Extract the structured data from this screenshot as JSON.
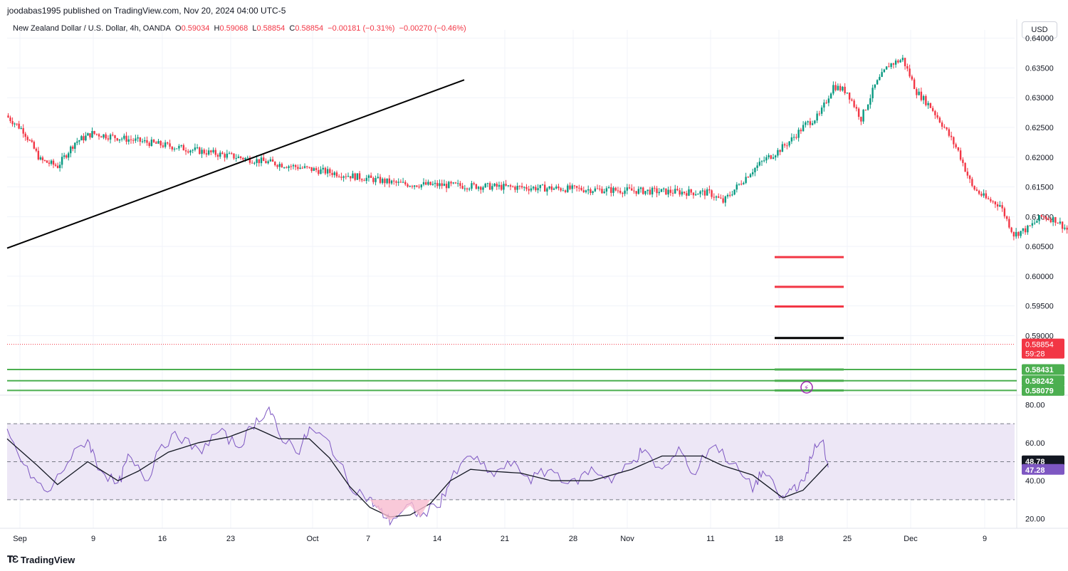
{
  "header": {
    "published": "joodabas1995 published on TradingView.com, Nov 20, 2024 04:00 UTC-5"
  },
  "legend": {
    "symbol": "New Zealand Dollar / U.S. Dollar, 4h, OANDA",
    "o_label": "O",
    "o": "0.59034",
    "h_label": "H",
    "h": "0.59068",
    "l_label": "L",
    "l": "0.58854",
    "c_label": "C",
    "c": "0.58854",
    "change": "−0.00181 (−0.31%)",
    "change2": "−0.00270 (−0.46%)"
  },
  "currency_button": "USD",
  "footer": {
    "brand": "TradingView"
  },
  "colors": {
    "up": "#089981",
    "down": "#f23645",
    "rsi": "#7e57c2",
    "rsi_ma": "#131722",
    "rsi_band": "#ede7f6",
    "support": "#4caf50",
    "resistance": "#f23645",
    "trendline": "#000000"
  },
  "chart_data": [
    {
      "type": "candlestick",
      "title": "New Zealand Dollar / U.S. Dollar, 4h, OANDA",
      "x_ticks": [
        "Sep",
        "9",
        "16",
        "23",
        "Oct",
        "7",
        "14",
        "21",
        "28",
        "Nov",
        "11",
        "18",
        "25",
        "Dec",
        "9"
      ],
      "y_ticks": [
        "0.64000",
        "0.63500",
        "0.63000",
        "0.62500",
        "0.62000",
        "0.61500",
        "0.61000",
        "0.60500",
        "0.60000",
        "0.59500",
        "0.59000"
      ],
      "ylim": [
        0.58,
        0.6402
      ],
      "close_path_anchors": [
        [
          "Sep",
          0.627
        ],
        [
          "3",
          0.6245
        ],
        [
          "5",
          0.6195
        ],
        [
          "6",
          0.6185
        ],
        [
          "8",
          0.6225
        ],
        [
          "9",
          0.624
        ],
        [
          "10",
          0.6155
        ],
        [
          "11",
          0.614
        ],
        [
          "12",
          0.6125
        ],
        [
          "13",
          0.615
        ],
        [
          "16",
          0.6175
        ],
        [
          "17",
          0.6195
        ],
        [
          "18",
          0.621
        ],
        [
          "19",
          0.623
        ],
        [
          "20",
          0.6255
        ],
        [
          "23",
          0.627
        ],
        [
          "24",
          0.632
        ],
        [
          "25",
          0.631
        ],
        [
          "26",
          0.6265
        ],
        [
          "27",
          0.632
        ],
        [
          "29",
          0.6355
        ],
        [
          "30",
          0.6365
        ],
        [
          "Oct",
          0.631
        ],
        [
          "2",
          0.6285
        ],
        [
          "3",
          0.625
        ],
        [
          "4",
          0.621
        ],
        [
          "7",
          0.615
        ],
        [
          "8",
          0.613
        ],
        [
          "9",
          0.612
        ],
        [
          "10",
          0.607
        ],
        [
          "11",
          0.608
        ],
        [
          "14",
          0.61
        ],
        [
          "15",
          0.6095
        ],
        [
          "16",
          0.6075
        ],
        [
          "17",
          0.606
        ],
        [
          "18",
          0.607
        ],
        [
          "21",
          0.6055
        ],
        [
          "22",
          0.6025
        ],
        [
          "23",
          0.602
        ],
        [
          "24",
          0.6005
        ],
        [
          "25",
          0.6
        ],
        [
          "28",
          0.5985
        ],
        [
          "29",
          0.598
        ],
        [
          "30",
          0.597
        ],
        [
          "31",
          0.5975
        ],
        [
          "Nov",
          0.598
        ],
        [
          "4",
          0.5995
        ],
        [
          "5",
          0.6005
        ],
        [
          "6",
          0.5935
        ],
        [
          "7",
          0.599
        ],
        [
          "8",
          0.6025
        ],
        [
          "11",
          0.5975
        ],
        [
          "12",
          0.596
        ],
        [
          "13",
          0.5925
        ],
        [
          "14",
          0.588
        ],
        [
          "15",
          0.5865
        ],
        [
          "18",
          0.587
        ],
        [
          "19",
          0.5895
        ],
        [
          "20",
          0.5885
        ]
      ],
      "last_price": "0.58854",
      "countdown": "59:28",
      "trendline": {
        "from": [
          "Sep",
          0.6047
        ],
        "to": [
          "17",
          0.633
        ]
      },
      "resistance_levels": [
        0.6032,
        0.5982,
        0.5949
      ],
      "marked_level": 0.5896,
      "support_levels": [
        {
          "value": 0.58431,
          "label": "0.58431"
        },
        {
          "value": 0.58242,
          "label": "0.58242"
        },
        {
          "value": 0.58079,
          "label": "0.58079"
        }
      ]
    },
    {
      "type": "line",
      "y_ticks": [
        "80.00",
        "60.00",
        "40.00",
        "20.00"
      ],
      "ylim": [
        15,
        85
      ],
      "overbought": 70,
      "middle": 50,
      "oversold": 30,
      "series": [
        {
          "color": "#7e57c2",
          "last_label": "47.28",
          "anchors": [
            [
              0,
              65
            ],
            [
              0.02,
              45
            ],
            [
              0.04,
              33
            ],
            [
              0.06,
              50
            ],
            [
              0.08,
              62
            ],
            [
              0.09,
              48
            ],
            [
              0.11,
              37
            ],
            [
              0.12,
              52
            ],
            [
              0.14,
              40
            ],
            [
              0.15,
              58
            ],
            [
              0.17,
              64
            ],
            [
              0.19,
              55
            ],
            [
              0.21,
              66
            ],
            [
              0.23,
              58
            ],
            [
              0.245,
              70
            ],
            [
              0.26,
              78
            ],
            [
              0.27,
              64
            ],
            [
              0.29,
              56
            ],
            [
              0.3,
              67
            ],
            [
              0.32,
              60
            ],
            [
              0.34,
              38
            ],
            [
              0.36,
              30
            ],
            [
              0.37,
              24
            ],
            [
              0.38,
              19
            ],
            [
              0.4,
              27
            ],
            [
              0.41,
              21
            ],
            [
              0.43,
              29
            ],
            [
              0.44,
              40
            ],
            [
              0.46,
              54
            ],
            [
              0.48,
              43
            ],
            [
              0.5,
              49
            ],
            [
              0.52,
              41
            ],
            [
              0.54,
              46
            ],
            [
              0.56,
              38
            ],
            [
              0.58,
              46
            ],
            [
              0.6,
              41
            ],
            [
              0.62,
              49
            ],
            [
              0.63,
              56
            ],
            [
              0.65,
              45
            ],
            [
              0.67,
              57
            ],
            [
              0.68,
              42
            ],
            [
              0.7,
              60
            ],
            [
              0.72,
              49
            ],
            [
              0.74,
              36
            ],
            [
              0.75,
              45
            ],
            [
              0.77,
              30
            ],
            [
              0.78,
              37
            ],
            [
              0.79,
              38
            ],
            [
              0.8,
              56
            ],
            [
              0.81,
              60
            ],
            [
              0.815,
              47
            ]
          ]
        },
        {
          "color": "#131722",
          "last_label": "48.78",
          "anchors": [
            [
              0,
              62
            ],
            [
              0.03,
              48
            ],
            [
              0.05,
              38
            ],
            [
              0.08,
              50
            ],
            [
              0.11,
              40
            ],
            [
              0.13,
              45
            ],
            [
              0.16,
              55
            ],
            [
              0.19,
              60
            ],
            [
              0.22,
              63
            ],
            [
              0.245,
              68
            ],
            [
              0.27,
              62
            ],
            [
              0.3,
              62
            ],
            [
              0.32,
              52
            ],
            [
              0.34,
              37
            ],
            [
              0.36,
              26
            ],
            [
              0.38,
              21
            ],
            [
              0.4,
              22
            ],
            [
              0.42,
              28
            ],
            [
              0.44,
              40
            ],
            [
              0.46,
              46
            ],
            [
              0.48,
              45
            ],
            [
              0.51,
              44
            ],
            [
              0.54,
              40
            ],
            [
              0.58,
              40
            ],
            [
              0.62,
              46
            ],
            [
              0.65,
              53
            ],
            [
              0.69,
              53
            ],
            [
              0.71,
              48
            ],
            [
              0.74,
              43
            ],
            [
              0.77,
              31
            ],
            [
              0.79,
              35
            ],
            [
              0.815,
              49
            ]
          ]
        }
      ]
    }
  ]
}
